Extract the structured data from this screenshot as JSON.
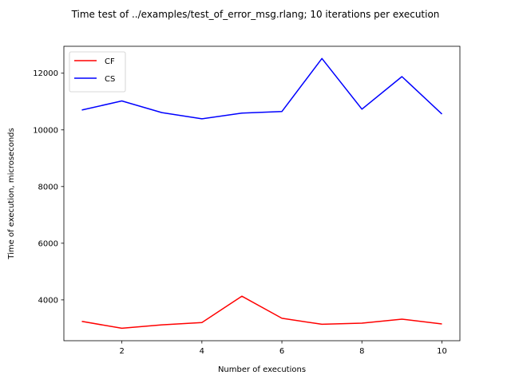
{
  "chart_data": {
    "type": "line",
    "title": "Time test of ../examples/test_of_error_msg.rlang; 10 iterations per execution",
    "xlabel": "Number of executions",
    "ylabel": "Time of execution, microseconds",
    "xlim": [
      0.55,
      10.45
    ],
    "ylim": [
      2560,
      12950
    ],
    "xticks": [
      2,
      4,
      6,
      8,
      10
    ],
    "yticks": [
      4000,
      6000,
      8000,
      10000,
      12000
    ],
    "grid": false,
    "legend_position": "top-left",
    "x": [
      1,
      2,
      3,
      4,
      5,
      6,
      7,
      8,
      9,
      10
    ],
    "series": [
      {
        "name": "CF",
        "color": "#ff0000",
        "values": [
          3240,
          3000,
          3120,
          3200,
          4130,
          3350,
          3140,
          3180,
          3320,
          3150
        ]
      },
      {
        "name": "CS",
        "color": "#0000ff",
        "values": [
          10700,
          11020,
          10610,
          10390,
          10590,
          10650,
          12520,
          10730,
          11880,
          10560
        ]
      }
    ]
  }
}
